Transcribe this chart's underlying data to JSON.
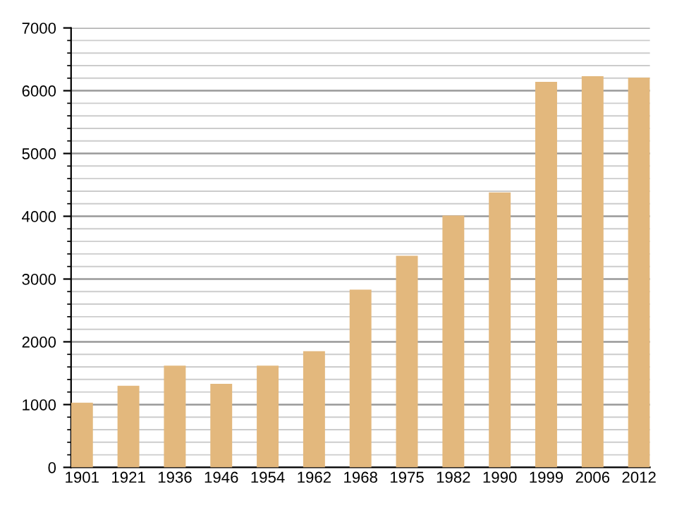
{
  "chart_data": {
    "type": "bar",
    "categories": [
      "1901",
      "1921",
      "1936",
      "1946",
      "1954",
      "1962",
      "1968",
      "1975",
      "1982",
      "1990",
      "1999",
      "2006",
      "2012"
    ],
    "values": [
      1030,
      1300,
      1620,
      1330,
      1620,
      1850,
      2830,
      3370,
      4010,
      4380,
      6140,
      6230,
      6210
    ],
    "color": "#e3b87d",
    "ylim": [
      0,
      7000
    ],
    "yticks": [
      0,
      1000,
      2000,
      3000,
      4000,
      5000,
      6000,
      7000
    ],
    "grid": "y"
  }
}
